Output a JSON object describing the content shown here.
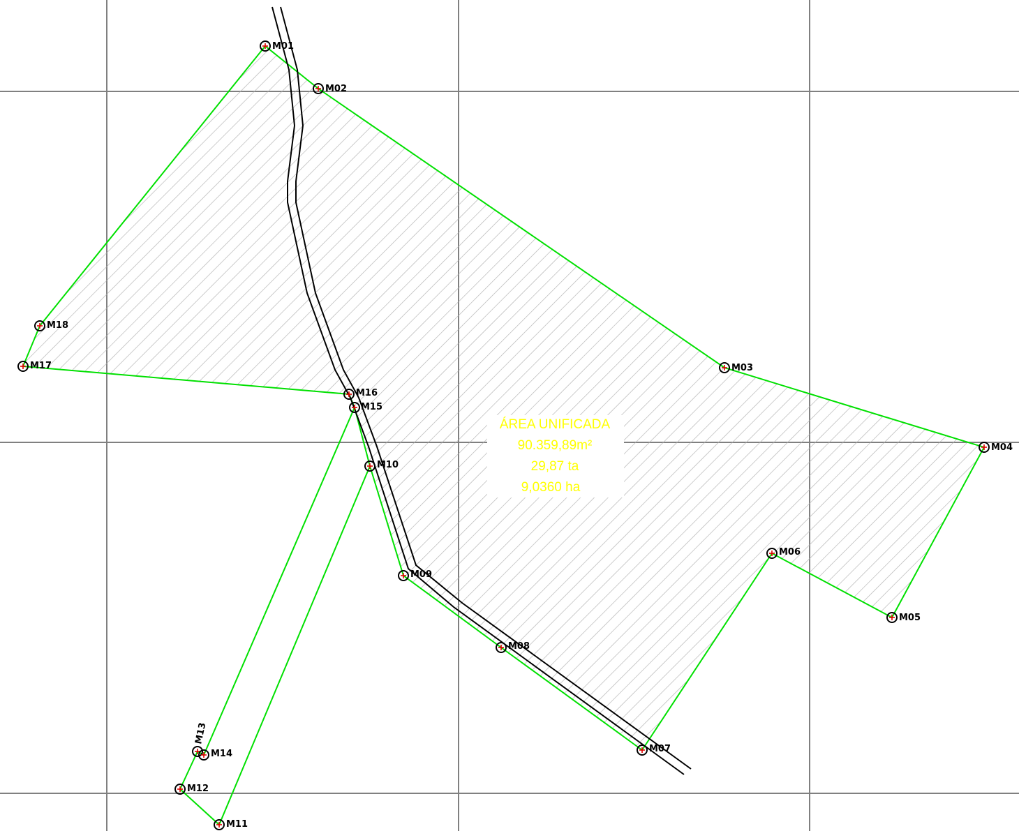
{
  "drawing": {
    "area_title": "ÁREA UNIFICADA",
    "area_m2": "90.359,89m²",
    "area_ta": "29,87 ta",
    "area_ha": "9,0360 ha",
    "colors": {
      "boundary": "#00e000",
      "road": "#000000",
      "grid": "#808080",
      "hatch": "#b0b0b0",
      "marker_cross": "#e00000",
      "area_text": "#ffff00"
    }
  },
  "markers": [
    {
      "label": "M01"
    },
    {
      "label": "M02"
    },
    {
      "label": "M03"
    },
    {
      "label": "M04"
    },
    {
      "label": "M05"
    },
    {
      "label": "M06"
    },
    {
      "label": "M07"
    },
    {
      "label": "M08"
    },
    {
      "label": "M09"
    },
    {
      "label": "M10"
    },
    {
      "label": "M11"
    },
    {
      "label": "M12"
    },
    {
      "label": "M13"
    },
    {
      "label": "M14"
    },
    {
      "label": "M15"
    },
    {
      "label": "M16"
    },
    {
      "label": "M17"
    },
    {
      "label": "M18"
    }
  ]
}
